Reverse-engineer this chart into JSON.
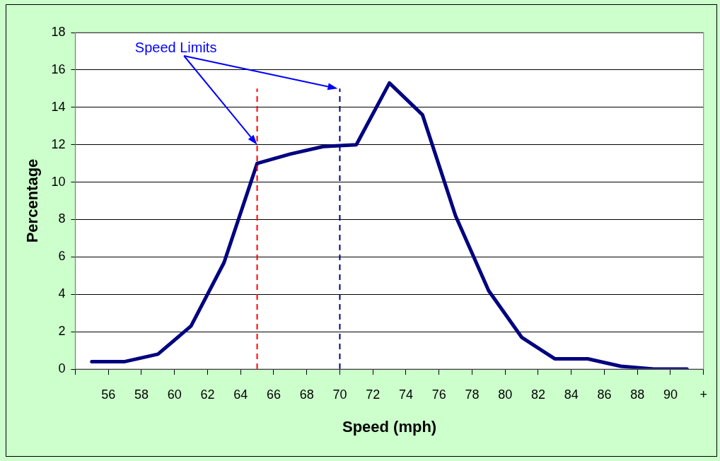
{
  "chart_data": {
    "type": "line",
    "xlabel": "Speed (mph)",
    "ylabel": "Percentage",
    "x": [
      55,
      57,
      59,
      61,
      63,
      65,
      67,
      69,
      71,
      73,
      75,
      77,
      79,
      81,
      83,
      85,
      87,
      89,
      91
    ],
    "series": [
      {
        "color": "#000080",
        "values": [
          0.4,
          0.4,
          0.8,
          2.3,
          5.7,
          11.0,
          11.5,
          11.9,
          12.0,
          15.3,
          13.6,
          8.2,
          4.2,
          1.7,
          0.55,
          0.55,
          0.15,
          0.0,
          0.0
        ]
      }
    ],
    "xlim": [
      54,
      92
    ],
    "xticks": [
      {
        "value": 54,
        "label": null
      },
      56,
      58,
      60,
      62,
      64,
      66,
      68,
      70,
      72,
      74,
      76,
      78,
      80,
      82,
      84,
      86,
      88,
      90,
      {
        "value": 92,
        "label": "+"
      }
    ],
    "ylim": [
      0,
      18
    ],
    "yticks": [
      0,
      2,
      4,
      6,
      8,
      10,
      12,
      14,
      16,
      18
    ],
    "grid": "y",
    "legend": false,
    "marker": "none",
    "line_style": "solid",
    "ref_lines": [
      {
        "axis": "x",
        "value": 65,
        "color": "#ff0000",
        "line_style": "dashed"
      },
      {
        "axis": "x",
        "value": 70,
        "color": "#000080",
        "line_style": "dashed"
      }
    ],
    "annotations": [
      "Speed Limits"
    ]
  }
}
